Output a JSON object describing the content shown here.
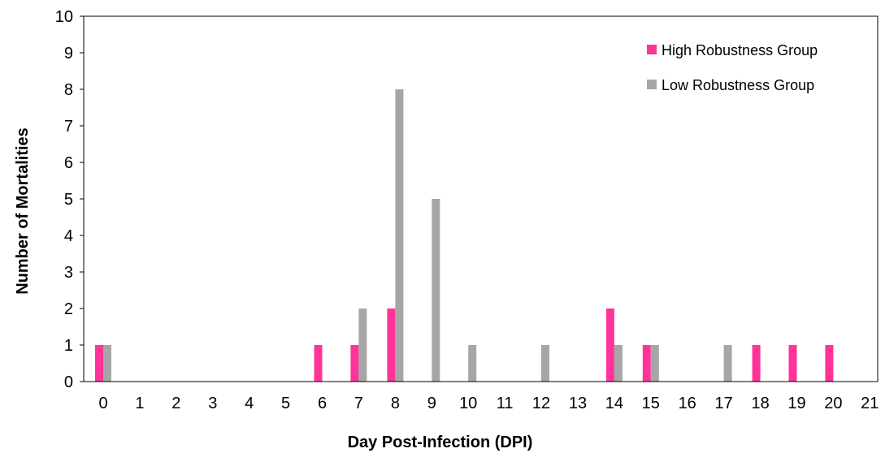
{
  "chart_data": {
    "type": "bar",
    "title": "",
    "xlabel": "Day Post-Infection (DPI)",
    "ylabel": "Number of Mortalities",
    "categories": [
      "0",
      "1",
      "2",
      "3",
      "4",
      "5",
      "6",
      "7",
      "8",
      "9",
      "10",
      "11",
      "12",
      "13",
      "14",
      "15",
      "16",
      "17",
      "18",
      "19",
      "20",
      "21"
    ],
    "ylim": [
      0,
      10
    ],
    "yticks": [
      "0",
      "1",
      "2",
      "3",
      "4",
      "5",
      "6",
      "7",
      "8",
      "9",
      "10"
    ],
    "grid": false,
    "legend_position": "top-right",
    "series": [
      {
        "name": "High Robustness Group",
        "color": "#ff3399",
        "values": [
          1,
          0,
          0,
          0,
          0,
          0,
          1,
          1,
          2,
          0,
          0,
          0,
          0,
          0,
          2,
          1,
          0,
          0,
          1,
          1,
          1,
          0
        ]
      },
      {
        "name": "Low Robustness Group",
        "color": "#a6a6a6",
        "values": [
          1,
          0,
          0,
          0,
          0,
          0,
          0,
          2,
          8,
          5,
          1,
          0,
          1,
          0,
          1,
          1,
          0,
          1,
          0,
          0,
          0,
          0
        ]
      }
    ]
  }
}
